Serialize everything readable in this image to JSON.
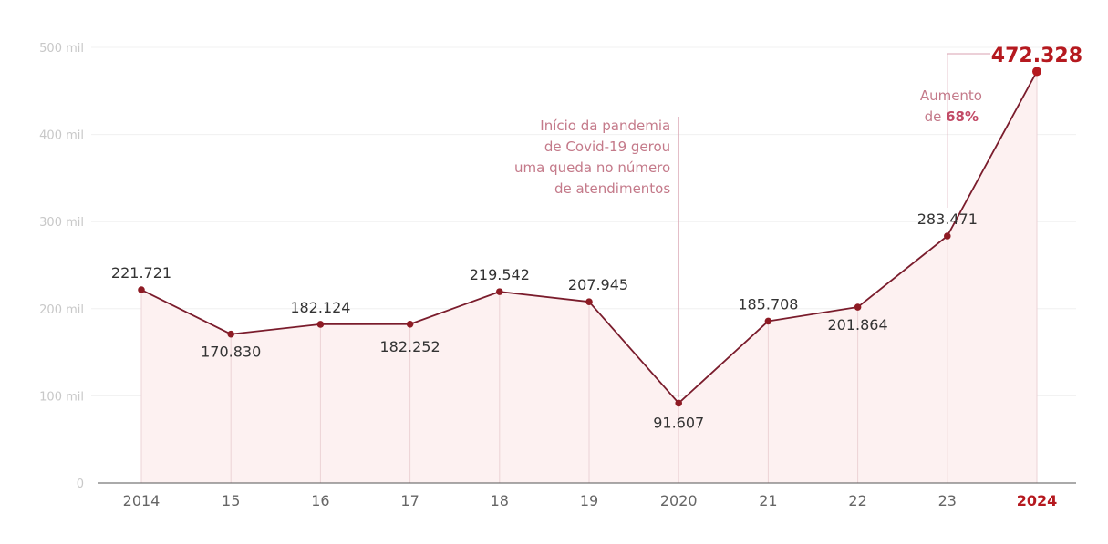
{
  "chart_data": {
    "type": "area",
    "categories": [
      "2014",
      "15",
      "16",
      "17",
      "18",
      "19",
      "2020",
      "21",
      "22",
      "23",
      "2024"
    ],
    "values": [
      221721,
      170830,
      182124,
      182252,
      219542,
      207945,
      91607,
      185708,
      201864,
      283471,
      472328
    ],
    "data_labels": [
      "221.721",
      "170.830",
      "182.124",
      "182.252",
      "219.542",
      "207.945",
      "91.607",
      "185.708",
      "201.864",
      "283.471",
      "472.328"
    ],
    "ylim": [
      0,
      500000
    ],
    "yticks": [
      0,
      100000,
      200000,
      300000,
      400000,
      500000
    ],
    "ytick_labels": [
      "0",
      "100 mil",
      "200 mil",
      "300 mil",
      "400 mil",
      "500 mil"
    ],
    "highlight_category": "2024",
    "grid": true,
    "colors": {
      "line": "#7a1c2c",
      "point": "#8e1b24",
      "area": "#fdf1f1",
      "highlight": "#b5191f",
      "annotation": "#c47a8a",
      "annotation_line": "#d8a2b0"
    },
    "annotations": {
      "pandemic": {
        "lines": [
          "Início da pandemia",
          "de Covid-19 gerou",
          "uma queda no número",
          "de atendimentos"
        ],
        "category": "2020"
      },
      "increase": {
        "line1": "Aumento",
        "line2_prefix": "de ",
        "line2_value": "68%"
      }
    }
  }
}
